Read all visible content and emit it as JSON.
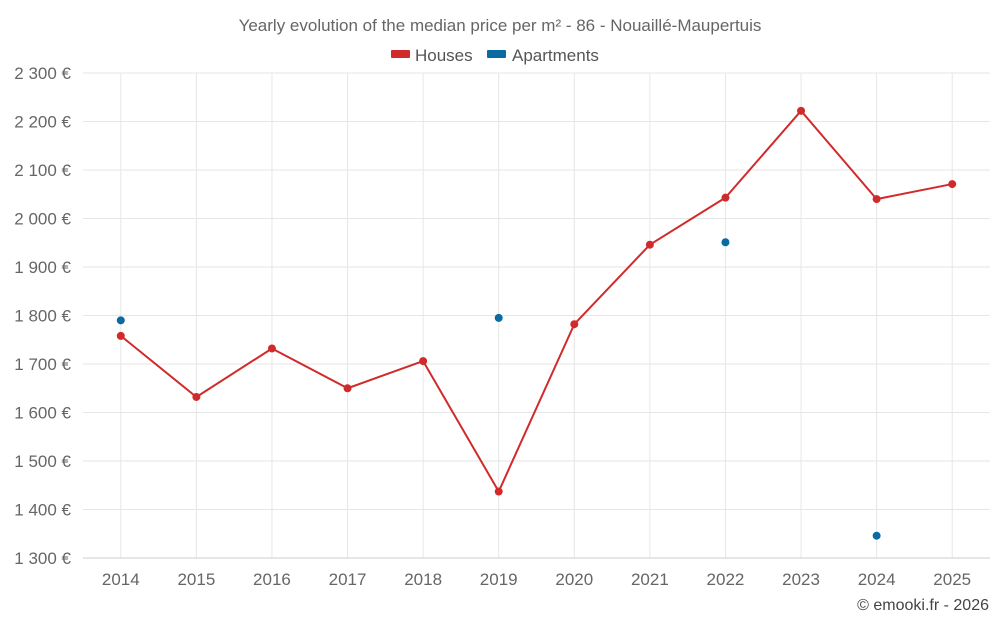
{
  "chart_data": {
    "type": "line",
    "title": "Yearly evolution of the median price per m² - 86 - Nouaillé-Maupertuis",
    "categories": [
      "2014",
      "2015",
      "2016",
      "2017",
      "2018",
      "2019",
      "2020",
      "2021",
      "2022",
      "2023",
      "2024",
      "2025"
    ],
    "ylim": [
      1300,
      2300
    ],
    "yticks": [
      1300,
      1400,
      1500,
      1600,
      1700,
      1800,
      1900,
      2000,
      2100,
      2200,
      2300
    ],
    "ytick_labels": [
      "1 300 €",
      "1 400 €",
      "1 500 €",
      "1 600 €",
      "1 700 €",
      "1 800 €",
      "1 900 €",
      "2 000 €",
      "2 100 €",
      "2 200 €",
      "2 300 €"
    ],
    "grid": true,
    "legend_position": "top-center",
    "series": [
      {
        "name": "Houses",
        "color": "#d12a2a",
        "style": "line+markers",
        "values": [
          1758,
          1632,
          1732,
          1650,
          1706,
          1437,
          1782,
          1946,
          2043,
          2222,
          2040,
          2071
        ]
      },
      {
        "name": "Apartments",
        "color": "#0a6aa1",
        "style": "markers",
        "values": [
          1790,
          null,
          null,
          null,
          null,
          1795,
          null,
          null,
          1951,
          null,
          1346,
          null
        ]
      }
    ]
  },
  "credit": "© emooki.fr - 2026"
}
